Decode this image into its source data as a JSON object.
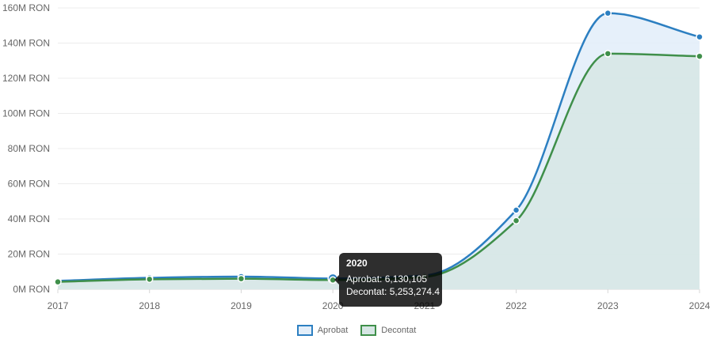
{
  "chart_data": {
    "type": "area",
    "categories": [
      "2017",
      "2018",
      "2019",
      "2020",
      "2021",
      "2022",
      "2023",
      "2024"
    ],
    "series": [
      {
        "name": "Aprobat",
        "values": [
          4800000,
          6500000,
          7200000,
          6130105,
          7800000,
          45000000,
          157000000,
          143500000
        ],
        "color": "#2c7fc1",
        "fill": "#e3eef9"
      },
      {
        "name": "Decontat",
        "values": [
          4200000,
          5700000,
          6000000,
          5253274.4,
          7000000,
          39000000,
          134000000,
          132500000
        ],
        "color": "#3f8f4a",
        "fill": "#d6e6e4"
      }
    ],
    "y_ticks": [
      "0M RON",
      "20M RON",
      "40M RON",
      "60M RON",
      "80M RON",
      "100M RON",
      "120M RON",
      "140M RON",
      "160M RON"
    ],
    "ylim": [
      0,
      160000000
    ],
    "grid": true,
    "legend_position": "bottom",
    "title": "",
    "xlabel": "",
    "ylabel": ""
  },
  "tooltip": {
    "title": "2020",
    "line1": "Aprobat: 6,130,105",
    "line2": "Decontat: 5,253,274.4"
  },
  "legend": {
    "aprobat_label": "Aprobat",
    "decontat_label": "Decontat",
    "aprobat_color": "#2c7fc1",
    "decontat_color": "#3f8f4a"
  }
}
